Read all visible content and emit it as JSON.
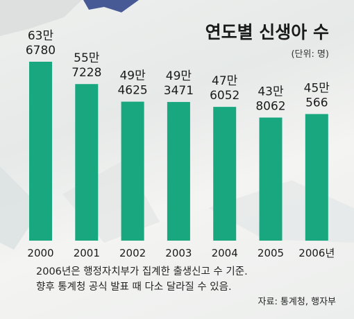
{
  "chart_data": {
    "type": "bar",
    "title": "연도별 신생아 수",
    "unit_label": "(단위: 명)",
    "categories": [
      "2000",
      "2001",
      "2002",
      "2003",
      "2004",
      "2005",
      "2006년"
    ],
    "values": [
      636780,
      557228,
      494625,
      493471,
      476052,
      438062,
      450566
    ],
    "value_labels": [
      [
        "63만",
        "6780"
      ],
      [
        "55만",
        "7228"
      ],
      [
        "49만",
        "4625"
      ],
      [
        "49만",
        "3471"
      ],
      [
        "47만",
        "6052"
      ],
      [
        "43만",
        "8062"
      ],
      [
        "45만",
        "566"
      ]
    ],
    "bar_color": "#18a77f",
    "ylim": [
      0,
      636780
    ],
    "grid": false,
    "legend": false
  },
  "notes": [
    "2006년은 행정자치부가 집계한 출생신고 수 기준.",
    "향후 통계청 공식 발표 때 다소 달라질 수 있음."
  ],
  "source": "자료: 통계청, 행자부"
}
